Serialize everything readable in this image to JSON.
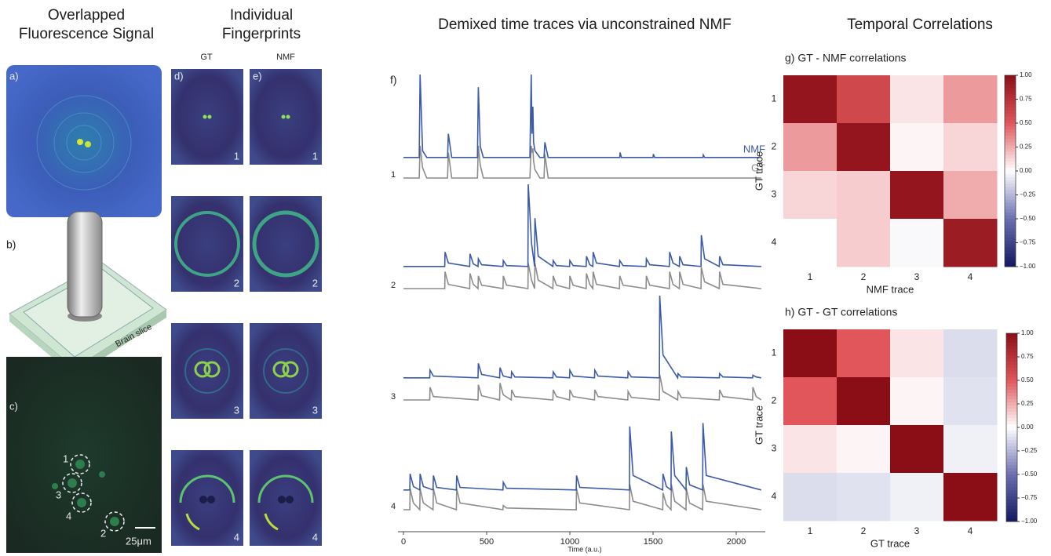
{
  "columns": [
    {
      "title": [
        "Overlapped",
        "Fluorescence Signal"
      ]
    },
    {
      "title": [
        "Individual",
        "Fingerprints"
      ]
    },
    {
      "title": [
        "Demixed time traces via unconstrained NMF"
      ]
    },
    {
      "title": [
        "Temporal Correlations"
      ]
    }
  ],
  "panel_a": {
    "label": "a)"
  },
  "panel_b": {
    "label": "b)",
    "caption": "Brain slice"
  },
  "panel_c": {
    "label": "c)",
    "cells": [
      "1",
      "3",
      "4",
      "2"
    ],
    "scale": "25μm"
  },
  "fingerprints": {
    "columns": [
      "GT",
      "NMF"
    ],
    "panels": [
      "d)",
      "e)"
    ],
    "rows": [
      "1",
      "2",
      "3",
      "4"
    ]
  },
  "chart_data": [
    {
      "type": "traces",
      "title": "f)",
      "xlabel": "Time (a.u.)",
      "xlim": [
        0,
        2150
      ],
      "xticks": [
        0,
        500,
        1000,
        1500,
        2000
      ],
      "ylim": [
        0,
        1
      ],
      "series": [
        {
          "name": "NMF",
          "color": "#3b5aa8"
        },
        {
          "name": "GT",
          "color": "#8c8c8c"
        }
      ],
      "traces": [
        {
          "label": "1",
          "x": [
            0,
            95,
            100,
            115,
            140,
            265,
            270,
            290,
            445,
            450,
            462,
            480,
            760,
            768,
            772,
            778,
            782,
            790,
            820,
            845,
            850,
            870,
            1300,
            1302,
            1310,
            1500,
            1502,
            1510,
            1800,
            1802,
            1810,
            2150
          ],
          "values": [
            [
              0.02,
              0.02,
              1.0,
              0.1,
              0.02,
              0.02,
              0.3,
              0.02,
              0.02,
              0.85,
              0.15,
              0.02,
              0.02,
              1.0,
              0.3,
              0.62,
              0.2,
              0.1,
              0.02,
              0.02,
              0.2,
              0.02,
              0.02,
              0.08,
              0.02,
              0.02,
              0.06,
              0.02,
              0.02,
              0.05,
              0.02,
              0.02
            ],
            [
              0,
              0,
              0.38,
              0.12,
              0,
              0,
              0.3,
              0,
              0,
              0.38,
              0.15,
              0,
              0,
              0.38,
              0.3,
              0.35,
              0.2,
              0.1,
              0,
              0,
              0.28,
              0,
              0,
              0,
              0,
              0,
              0,
              0,
              0,
              0,
              0,
              0
            ]
          ]
        },
        {
          "label": "2",
          "x": [
            0,
            248,
            250,
            270,
            398,
            400,
            420,
            448,
            450,
            470,
            598,
            600,
            620,
            748,
            750,
            770,
            788,
            790,
            810,
            898,
            900,
            920,
            998,
            1000,
            1020,
            1098,
            1100,
            1120,
            1138,
            1140,
            1160,
            1298,
            1300,
            1320,
            1458,
            1460,
            1480,
            1598,
            1600,
            1620,
            1658,
            1660,
            1680,
            1788,
            1790,
            1810,
            1898,
            1900,
            1920,
            2150
          ],
          "values": [
            [
              0.03,
              0.03,
              0.2,
              0.07,
              0.03,
              0.18,
              0.06,
              0.03,
              0.12,
              0.05,
              0.03,
              0.1,
              0.04,
              0.03,
              1.0,
              0.3,
              0.03,
              0.6,
              0.15,
              0.03,
              0.1,
              0.04,
              0.03,
              0.1,
              0.04,
              0.03,
              0.15,
              0.05,
              0.03,
              0.2,
              0.07,
              0.03,
              0.1,
              0.04,
              0.03,
              0.12,
              0.05,
              0.03,
              0.2,
              0.07,
              0.03,
              0.15,
              0.05,
              0.03,
              0.4,
              0.12,
              0.03,
              0.15,
              0.05,
              0.03
            ],
            [
              0,
              0,
              0.2,
              0.05,
              0,
              0.18,
              0.05,
              0,
              0.15,
              0.04,
              0,
              0.15,
              0.04,
              0,
              0.3,
              0.1,
              0,
              0.3,
              0.1,
              0,
              0.15,
              0.04,
              0,
              0.15,
              0.04,
              0,
              0.18,
              0.05,
              0,
              0.2,
              0.05,
              0,
              0.15,
              0.04,
              0,
              0.15,
              0.04,
              0,
              0.2,
              0.05,
              0,
              0.2,
              0.05,
              0,
              0.25,
              0.08,
              0,
              0.2,
              0.05,
              0
            ]
          ]
        },
        {
          "label": "3",
          "x": [
            0,
            158,
            160,
            180,
            448,
            450,
            470,
            578,
            580,
            600,
            648,
            650,
            670,
            898,
            900,
            920,
            998,
            1000,
            1020,
            1148,
            1150,
            1170,
            1348,
            1350,
            1370,
            1538,
            1540,
            1560,
            1648,
            1650,
            1670,
            1898,
            1900,
            1920,
            2098,
            2100,
            2120,
            2150
          ],
          "values": [
            [
              0.03,
              0.03,
              0.12,
              0.05,
              0.03,
              0.2,
              0.07,
              0.03,
              0.15,
              0.05,
              0.03,
              0.1,
              0.04,
              0.03,
              0.1,
              0.04,
              0.03,
              0.12,
              0.05,
              0.03,
              0.12,
              0.05,
              0.03,
              0.1,
              0.04,
              0.03,
              1.0,
              0.3,
              0.03,
              0.08,
              0.04,
              0.03,
              0.08,
              0.04,
              0.03,
              0.06,
              0.04,
              0.03
            ],
            [
              0,
              0,
              0.15,
              0.04,
              0,
              0.18,
              0.05,
              0,
              0.2,
              0.06,
              0,
              0.12,
              0.04,
              0,
              0.12,
              0.04,
              0,
              0.12,
              0.04,
              0,
              0.12,
              0.04,
              0,
              0.1,
              0.03,
              0,
              0.3,
              0.1,
              0,
              0.1,
              0.03,
              0,
              0.12,
              0.04,
              0,
              0.15,
              0.04,
              0
            ]
          ]
        },
        {
          "label": "4",
          "x": [
            0,
            38,
            40,
            60,
            98,
            100,
            120,
            178,
            180,
            200,
            318,
            320,
            340,
            598,
            600,
            620,
            1038,
            1040,
            1060,
            1358,
            1360,
            1380,
            1558,
            1560,
            1580,
            1608,
            1610,
            1630,
            1698,
            1700,
            1720,
            1798,
            1800,
            1820,
            2150
          ],
          "values": [
            [
              0.03,
              0.03,
              0.22,
              0.07,
              0.03,
              0.22,
              0.07,
              0.03,
              0.2,
              0.06,
              0.03,
              0.2,
              0.06,
              0.03,
              0.12,
              0.05,
              0.03,
              0.2,
              0.06,
              0.03,
              0.78,
              0.2,
              0.03,
              0.22,
              0.07,
              0.03,
              0.72,
              0.2,
              0.03,
              0.3,
              0.09,
              0.03,
              0.82,
              0.2,
              0.03
            ],
            [
              0,
              0,
              0.25,
              0.08,
              0,
              0.25,
              0.08,
              0,
              0.25,
              0.08,
              0,
              0.25,
              0.08,
              0,
              0.05,
              0.02,
              0,
              0.25,
              0.08,
              0,
              0.3,
              0.1,
              0,
              0.2,
              0.06,
              0,
              0.3,
              0.1,
              0,
              0.25,
              0.08,
              0,
              0.3,
              0.1,
              0
            ]
          ]
        }
      ]
    },
    {
      "type": "heatmap",
      "title": "g)  GT - NMF correlations",
      "xlabel": "NMF trace",
      "ylabel": "GT trace",
      "xcategories": [
        "1",
        "2",
        "3",
        "4"
      ],
      "ycategories": [
        "1",
        "2",
        "3",
        "4"
      ],
      "values": [
        [
          0.95,
          0.6,
          0.08,
          0.3
        ],
        [
          0.3,
          0.95,
          0.03,
          0.12
        ],
        [
          0.12,
          0.15,
          0.95,
          0.25
        ],
        [
          0.0,
          0.15,
          -0.02,
          0.9
        ]
      ],
      "zlim": [
        -1,
        1
      ],
      "zticks": [
        {
          "value": 1,
          "label": "1.00"
        },
        {
          "value": 0.75,
          "label": "0.75"
        },
        {
          "value": 0.5,
          "label": "0.50"
        },
        {
          "value": 0.25,
          "label": "0.25"
        },
        {
          "value": 0,
          "label": "0.00"
        },
        {
          "value": -0.25,
          "label": "−0.25"
        },
        {
          "value": -0.5,
          "label": "−0.50"
        },
        {
          "value": -0.75,
          "label": "−0.75"
        },
        {
          "value": -1,
          "label": "−1.00"
        }
      ],
      "colormap": [
        "#131862",
        "#6b6fb0",
        "#ffffff",
        "#e0565a",
        "#8b0e16"
      ]
    },
    {
      "type": "heatmap",
      "title": "h)  GT - GT correlations",
      "xlabel": "GT trace",
      "ylabel": "GT trace",
      "xcategories": [
        "1",
        "2",
        "3",
        "4"
      ],
      "ycategories": [
        "1",
        "2",
        "3",
        "4"
      ],
      "values": [
        [
          1,
          0.5,
          0.08,
          -0.12
        ],
        [
          0.5,
          1,
          0.03,
          -0.1
        ],
        [
          0.08,
          0.03,
          1,
          -0.05
        ],
        [
          -0.12,
          -0.1,
          -0.05,
          1
        ]
      ],
      "zlim": [
        -1,
        1
      ],
      "zticks": [
        {
          "value": 1,
          "label": "1.00"
        },
        {
          "value": 0.75,
          "label": "0.75"
        },
        {
          "value": 0.5,
          "label": "0.50"
        },
        {
          "value": 0.25,
          "label": "0.25"
        },
        {
          "value": 0,
          "label": "0.00"
        },
        {
          "value": -0.25,
          "label": "−0.25"
        },
        {
          "value": -0.5,
          "label": "−0.50"
        },
        {
          "value": -0.75,
          "label": "−0.75"
        },
        {
          "value": -1,
          "label": "−1.00"
        }
      ],
      "colormap": [
        "#131862",
        "#6b6fb0",
        "#ffffff",
        "#e0565a",
        "#8b0e16"
      ]
    }
  ]
}
